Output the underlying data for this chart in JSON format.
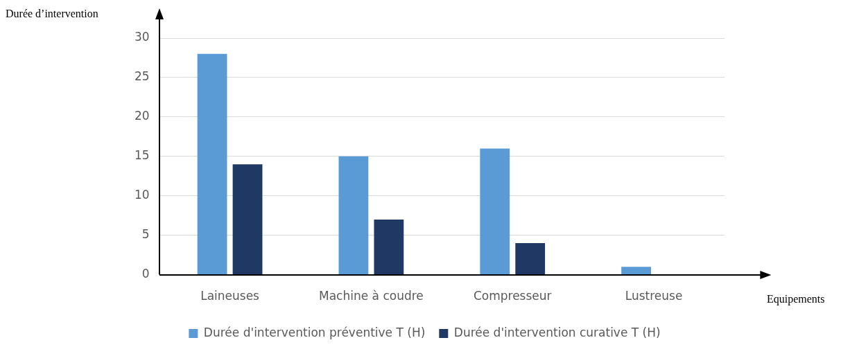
{
  "chart_data": {
    "type": "bar",
    "xlabel": "Equipements",
    "ylabel": "Durée d’intervention",
    "categories": [
      "Laineuses",
      "Machine à coudre",
      "Compresseur",
      "Lustreuse"
    ],
    "series": [
      {
        "name": "Durée d'intervention préventive T (H)",
        "color": "#5b9bd5",
        "values": [
          28,
          15,
          16,
          1
        ]
      },
      {
        "name": "Durée d'intervention curative T (H)",
        "color": "#203864",
        "values": [
          14,
          7,
          4,
          0
        ]
      }
    ],
    "ylim": [
      0,
      30
    ],
    "yticks": [
      0,
      5,
      10,
      15,
      20,
      25,
      30
    ],
    "grid": "y",
    "legend": "bottom"
  }
}
